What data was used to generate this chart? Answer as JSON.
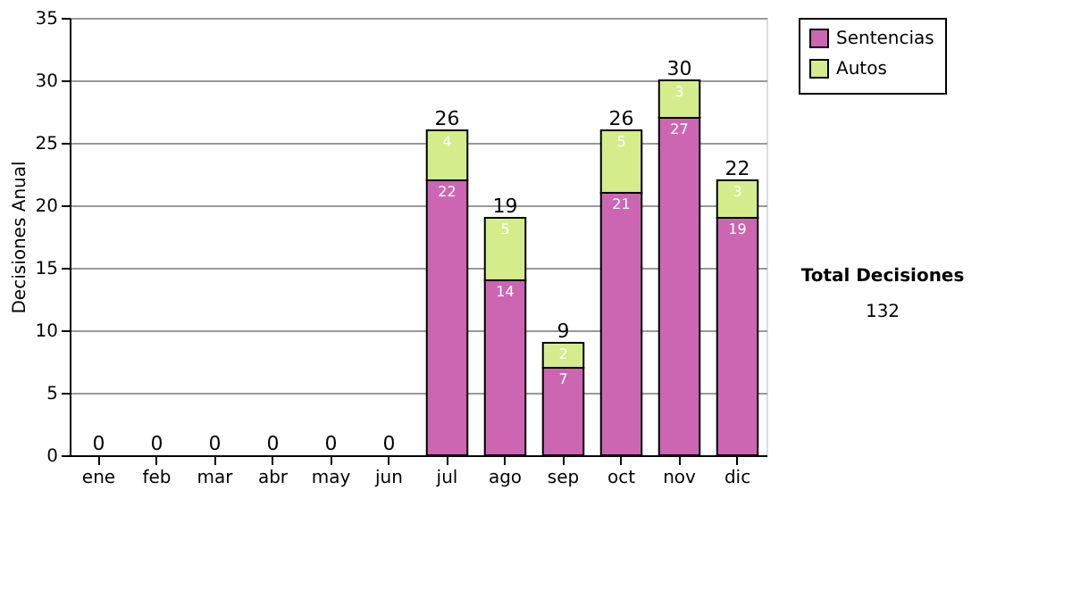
{
  "chart_data": {
    "type": "bar",
    "stacked": true,
    "ylabel": "Decisiones Anual",
    "categories": [
      "ene",
      "feb",
      "mar",
      "abr",
      "may",
      "jun",
      "jul",
      "ago",
      "sep",
      "oct",
      "nov",
      "dic"
    ],
    "series": [
      {
        "name": "Sentencias",
        "color": "#cc66b2",
        "values": [
          0,
          0,
          0,
          0,
          0,
          0,
          22,
          14,
          7,
          21,
          27,
          19
        ],
        "value_labels": [
          null,
          null,
          null,
          null,
          null,
          null,
          "22",
          "14",
          "7",
          "21",
          "27",
          "19"
        ]
      },
      {
        "name": "Autos",
        "color": "#d4ec8c",
        "values": [
          0,
          0,
          0,
          0,
          0,
          0,
          4,
          5,
          2,
          5,
          3,
          3
        ],
        "value_labels": [
          null,
          null,
          null,
          null,
          null,
          null,
          "4",
          "5",
          "2",
          "5",
          "3",
          "3"
        ]
      }
    ],
    "totals": [
      "0",
      "0",
      "0",
      "0",
      "0",
      "0",
      "26",
      "19",
      "9",
      "26",
      "30",
      "22"
    ],
    "ylim": [
      0,
      35
    ],
    "yticks": [
      0,
      5,
      10,
      15,
      20,
      25,
      30,
      35
    ],
    "grid": "y",
    "legend": "right",
    "annotations": [
      "Total Decisiones",
      "132"
    ]
  }
}
